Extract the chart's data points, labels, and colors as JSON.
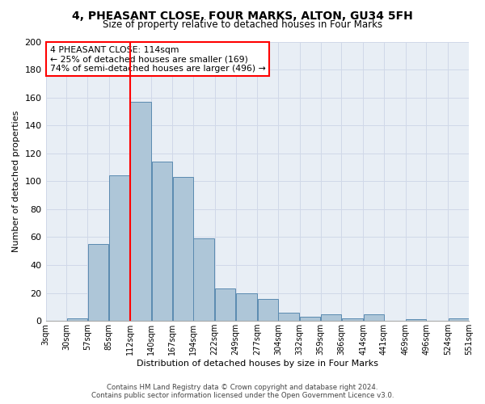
{
  "title": "4, PHEASANT CLOSE, FOUR MARKS, ALTON, GU34 5FH",
  "subtitle": "Size of property relative to detached houses in Four Marks",
  "xlabel": "Distribution of detached houses by size in Four Marks",
  "ylabel": "Number of detached properties",
  "bar_values": [
    0,
    2,
    55,
    104,
    157,
    114,
    103,
    59,
    23,
    20,
    16,
    6,
    3,
    5,
    2,
    5,
    0,
    1,
    0,
    2
  ],
  "bin_edges": [
    3,
    30,
    57,
    85,
    112,
    140,
    167,
    194,
    222,
    249,
    277,
    304,
    332,
    359,
    386,
    414,
    441,
    469,
    496,
    524,
    551
  ],
  "tick_labels": [
    "3sqm",
    "30sqm",
    "57sqm",
    "85sqm",
    "112sqm",
    "140sqm",
    "167sqm",
    "194sqm",
    "222sqm",
    "249sqm",
    "277sqm",
    "304sqm",
    "332sqm",
    "359sqm",
    "386sqm",
    "414sqm",
    "441sqm",
    "469sqm",
    "496sqm",
    "524sqm",
    "551sqm"
  ],
  "bar_color": "#aec6d8",
  "bar_edge_color": "#5a8ab0",
  "grid_color": "#d0d8e8",
  "background_color": "#e8eef5",
  "red_line_x": 112,
  "annotation_text": "4 PHEASANT CLOSE: 114sqm\n← 25% of detached houses are smaller (169)\n74% of semi-detached houses are larger (496) →",
  "footer_line1": "Contains HM Land Registry data © Crown copyright and database right 2024.",
  "footer_line2": "Contains public sector information licensed under the Open Government Licence v3.0.",
  "ylim": [
    0,
    200
  ],
  "yticks": [
    0,
    20,
    40,
    60,
    80,
    100,
    120,
    140,
    160,
    180,
    200
  ]
}
